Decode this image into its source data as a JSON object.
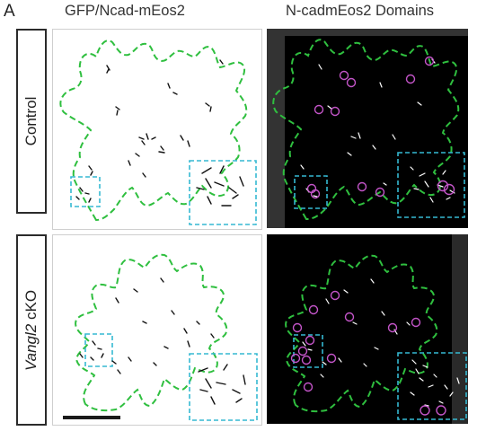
{
  "panel_letter": "A",
  "columns": {
    "left_title": "GFP/Ncad-mEos2",
    "right_title": "N-cadmEos2 Domains"
  },
  "rows": {
    "top_label": "Control",
    "bottom_label_gene": "Vangl2",
    "bottom_label_suffix": " cKO"
  },
  "colors": {
    "outline": "#2fbf3f",
    "inset": "#35b9d2",
    "domain_circle": "#c455c9",
    "cluster_dark": "#111111",
    "cluster_light": "#ffffff"
  }
}
